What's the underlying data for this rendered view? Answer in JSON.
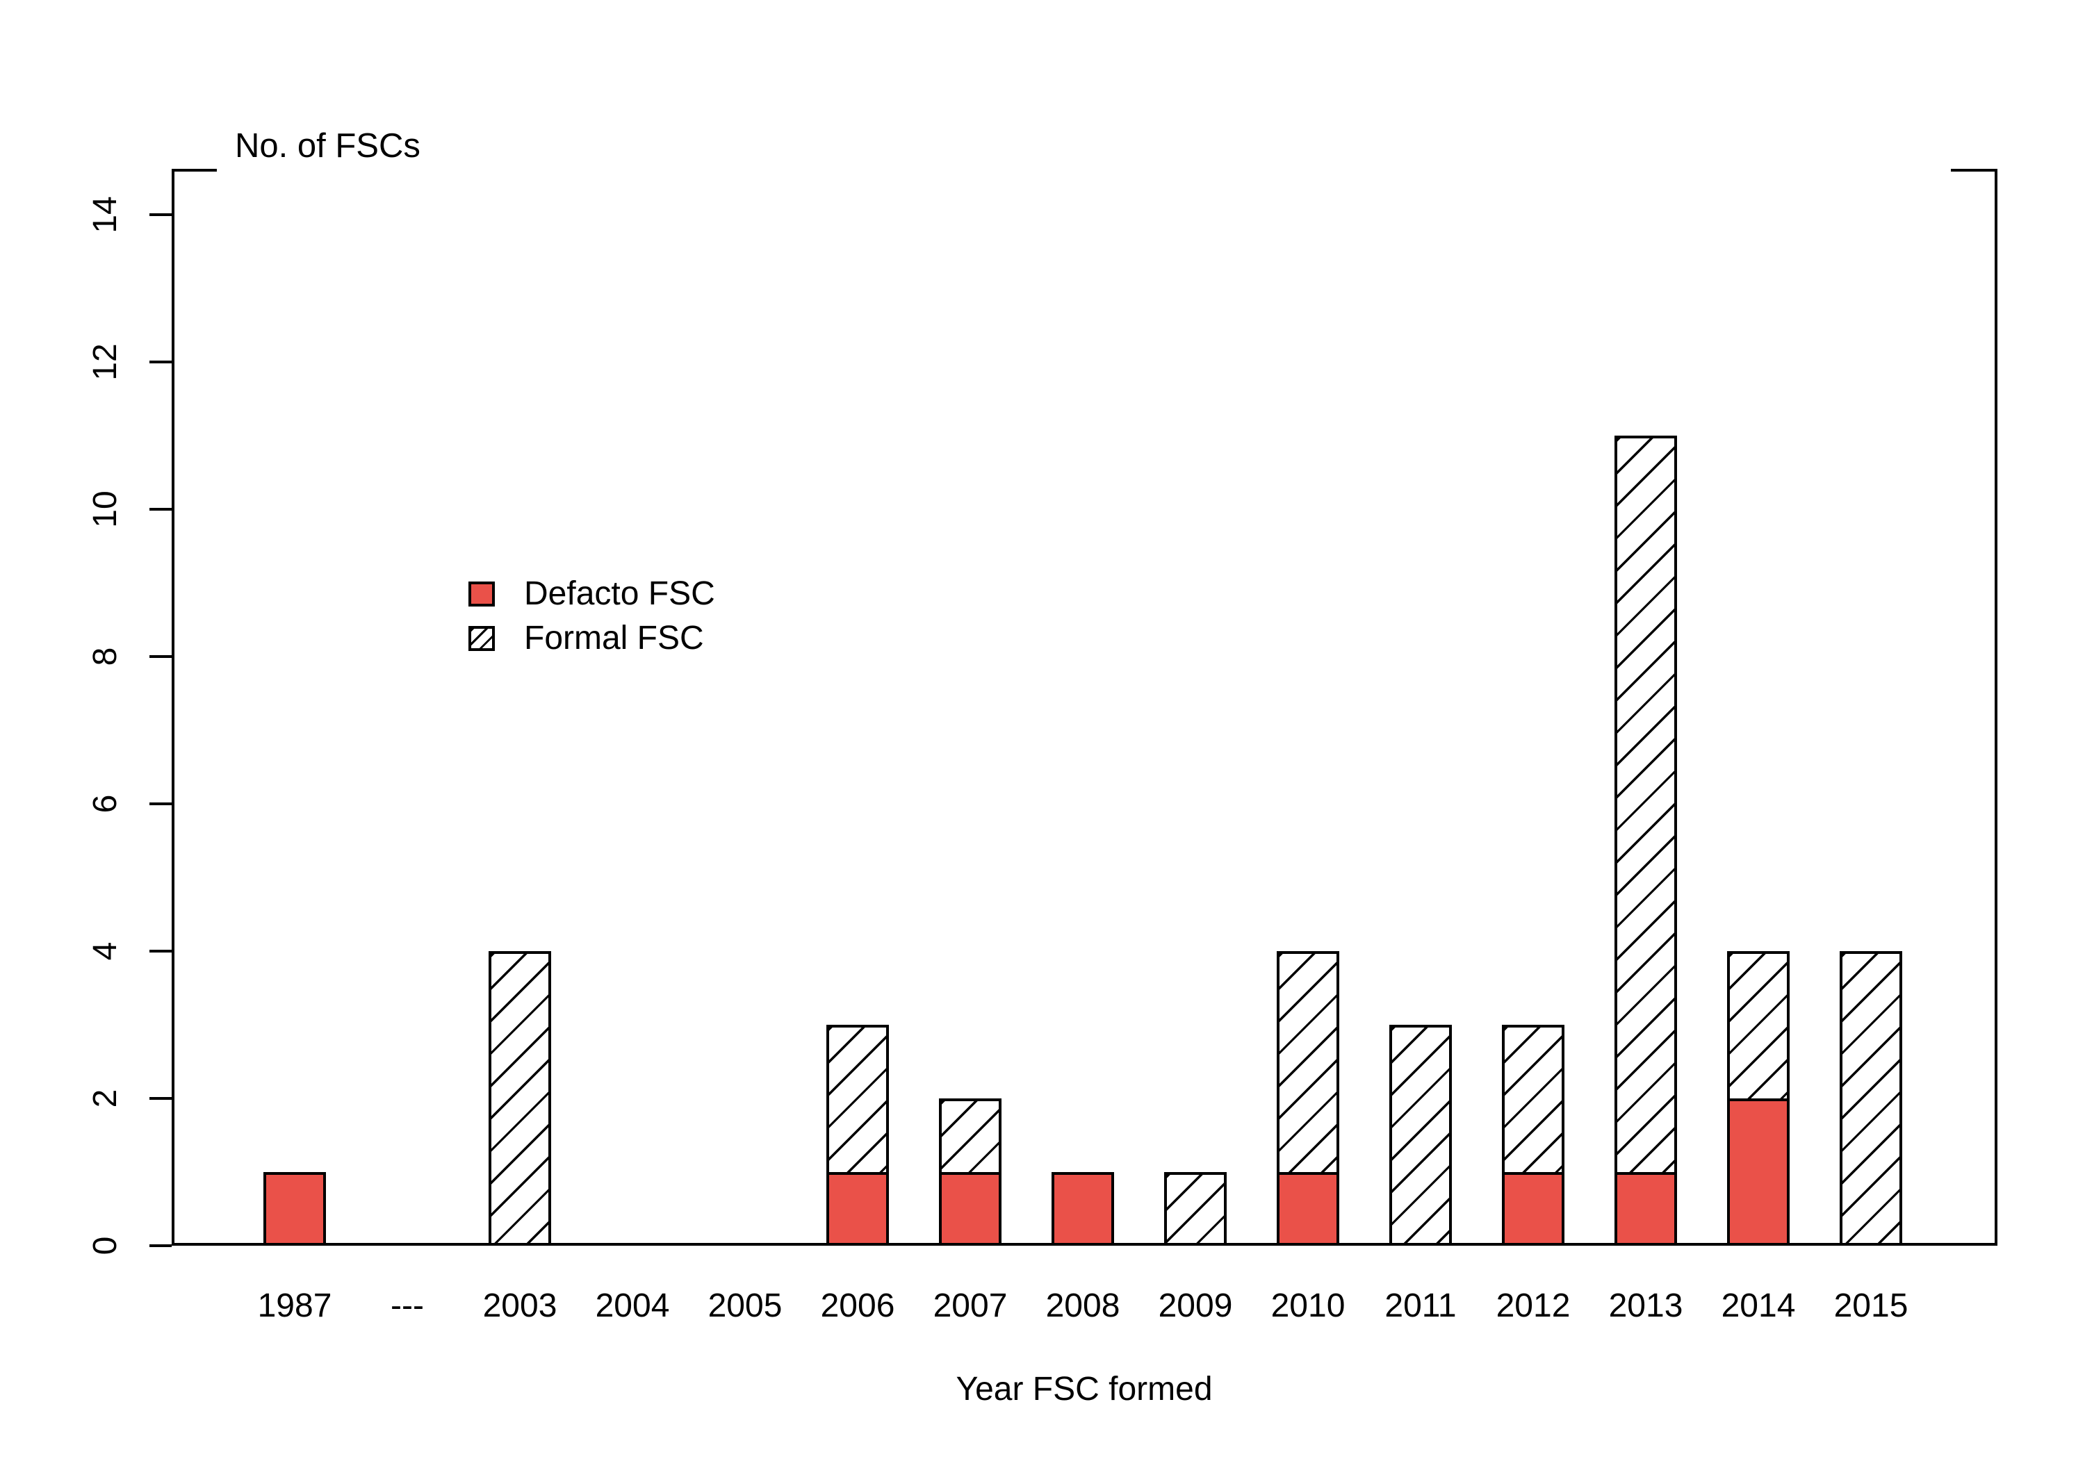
{
  "colors": {
    "defacto_fill": "#EA5149",
    "hatch_line": "#000000",
    "outline": "#000000",
    "background": "#FFFFFF"
  },
  "legend": {
    "items": [
      {
        "label": "Defacto FSC",
        "swatch": "defacto-solid-red"
      },
      {
        "label": "Formal FSC",
        "swatch": "formal-diagonal-hatch"
      }
    ]
  },
  "chart_data": {
    "type": "bar",
    "stacked": true,
    "title": "",
    "ylabel": "No. of FSCs",
    "xlabel": "Year FSC formed",
    "categories": [
      "1987",
      "---",
      "2003",
      "2004",
      "2005",
      "2006",
      "2007",
      "2008",
      "2009",
      "2010",
      "2011",
      "2012",
      "2013",
      "2014",
      "2015"
    ],
    "series": [
      {
        "name": "Defacto FSC",
        "style": "solid-red",
        "values": [
          1,
          0,
          0,
          0,
          0,
          1,
          1,
          1,
          0,
          1,
          0,
          1,
          1,
          2,
          0
        ]
      },
      {
        "name": "Formal FSC",
        "style": "diagonal-hatch",
        "values": [
          0,
          0,
          4,
          0,
          0,
          2,
          1,
          0,
          1,
          3,
          3,
          2,
          10,
          2,
          4
        ]
      }
    ],
    "totals": [
      1,
      0,
      4,
      0,
      0,
      3,
      2,
      1,
      1,
      4,
      3,
      3,
      11,
      4,
      4
    ],
    "yticks": [
      0,
      2,
      4,
      6,
      8,
      10,
      12,
      14
    ],
    "ylim": [
      0,
      14.6
    ],
    "grid": false,
    "legend_position": "upper-left-inside",
    "frame": "left-bottom-right-with-top-corner-stubs"
  }
}
